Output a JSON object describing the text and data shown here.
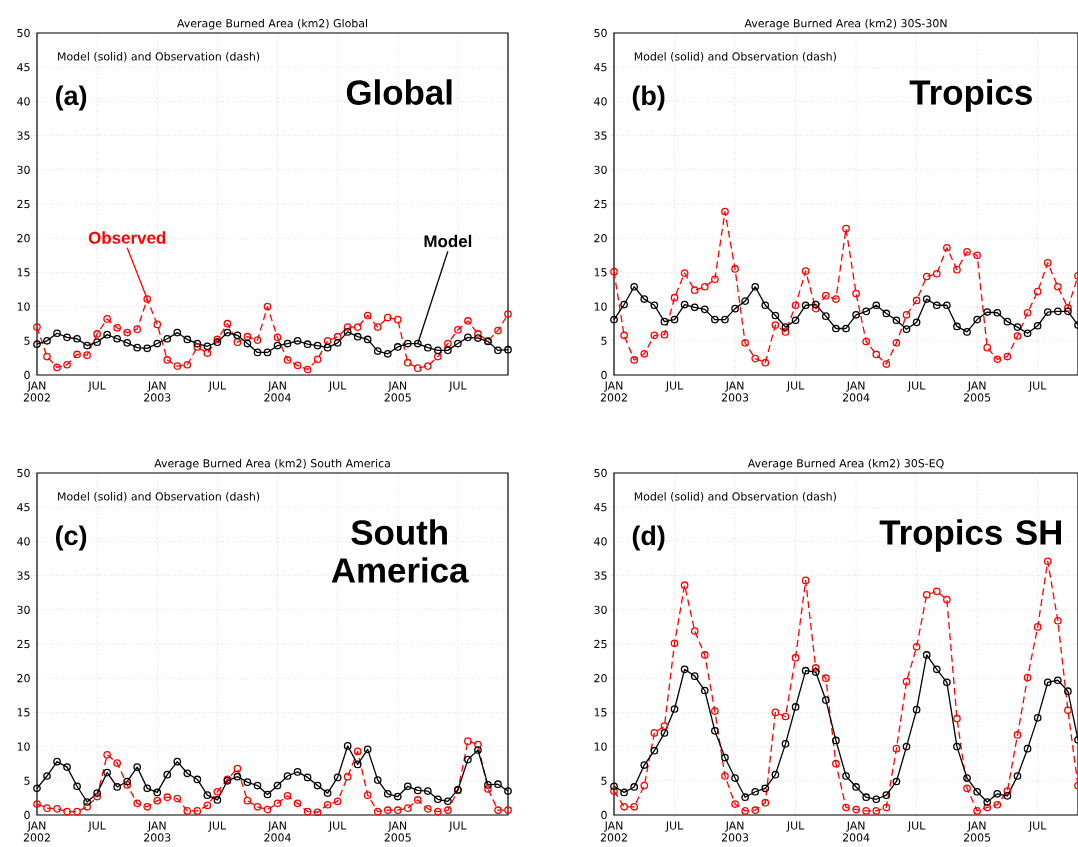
{
  "chart_data": [
    {
      "type": "line",
      "title": "Average Burned Area (km2) Global",
      "annotations": [
        "Model (solid) and Observation (dash)",
        "(a)",
        "Global",
        {
          "text": "Observed",
          "x": "2002-12",
          "y": 11.1
        },
        {
          "text": "Model",
          "x": "2005-03",
          "y": 4.6
        }
      ],
      "x": [
        "2002-01",
        "2002-02",
        "2002-03",
        "2002-04",
        "2002-05",
        "2002-06",
        "2002-07",
        "2002-08",
        "2002-09",
        "2002-10",
        "2002-11",
        "2002-12",
        "2003-01",
        "2003-02",
        "2003-03",
        "2003-04",
        "2003-05",
        "2003-06",
        "2003-07",
        "2003-08",
        "2003-09",
        "2003-10",
        "2003-11",
        "2003-12",
        "2004-01",
        "2004-02",
        "2004-03",
        "2004-04",
        "2004-05",
        "2004-06",
        "2004-07",
        "2004-08",
        "2004-09",
        "2004-10",
        "2004-11",
        "2004-12",
        "2005-01",
        "2005-02",
        "2005-03",
        "2005-04",
        "2005-05",
        "2005-06",
        "2005-07",
        "2005-08",
        "2005-09",
        "2005-10",
        "2005-11",
        "2005-12"
      ],
      "xlim": [
        "2002-01",
        "2005-12"
      ],
      "xticks": [
        {
          "value": "2002-01",
          "label": "JAN 2002"
        },
        {
          "value": "2002-07",
          "label": "JUL"
        },
        {
          "value": "2003-01",
          "label": "JAN 2003"
        },
        {
          "value": "2003-07",
          "label": "JUL"
        },
        {
          "value": "2004-01",
          "label": "JAN 2004"
        },
        {
          "value": "2004-07",
          "label": "JUL"
        },
        {
          "value": "2005-01",
          "label": "JAN 2005"
        },
        {
          "value": "2005-07",
          "label": "JUL"
        }
      ],
      "ylim": [
        0,
        50
      ],
      "yticks": [
        0,
        5,
        10,
        15,
        20,
        25,
        30,
        35,
        40,
        45,
        50
      ],
      "grid": true,
      "marker": "circle",
      "series": [
        {
          "color": "#ff0000",
          "line_style": "dashed",
          "values": [
            7.0,
            2.7,
            1.1,
            1.5,
            3.0,
            2.9,
            6.0,
            8.2,
            6.9,
            6.2,
            6.7,
            11.1,
            7.4,
            2.2,
            1.3,
            1.5,
            4.1,
            3.2,
            5.2,
            7.5,
            4.8,
            5.6,
            5.1,
            10.0,
            5.5,
            2.2,
            1.4,
            0.8,
            2.3,
            5.0,
            5.6,
            7.0,
            7.0,
            8.7,
            7.0,
            8.4,
            8.1,
            1.8,
            1.0,
            1.3,
            2.7,
            4.6,
            6.6,
            7.9,
            6.0,
            5.0,
            6.5,
            8.9
          ]
        },
        {
          "color": "#000000",
          "line_style": "solid",
          "values": [
            4.5,
            5.0,
            6.1,
            5.5,
            5.3,
            4.3,
            4.8,
            5.9,
            5.3,
            4.7,
            4.0,
            3.9,
            4.6,
            5.3,
            6.2,
            5.2,
            4.6,
            4.2,
            4.8,
            6.2,
            5.8,
            4.6,
            3.3,
            3.3,
            4.3,
            4.6,
            5.0,
            4.5,
            4.3,
            4.0,
            4.7,
            6.3,
            5.6,
            5.2,
            3.5,
            3.1,
            4.1,
            4.6,
            4.6,
            4.0,
            3.6,
            3.6,
            4.6,
            5.5,
            5.4,
            4.9,
            3.6,
            3.7
          ]
        }
      ]
    },
    {
      "type": "line",
      "title": "Average Burned Area (km2) 30S-30N",
      "annotations": [
        "Model (solid) and Observation (dash)",
        "(b)",
        "Tropics"
      ],
      "x": [
        "2002-01",
        "2002-02",
        "2002-03",
        "2002-04",
        "2002-05",
        "2002-06",
        "2002-07",
        "2002-08",
        "2002-09",
        "2002-10",
        "2002-11",
        "2002-12",
        "2003-01",
        "2003-02",
        "2003-03",
        "2003-04",
        "2003-05",
        "2003-06",
        "2003-07",
        "2003-08",
        "2003-09",
        "2003-10",
        "2003-11",
        "2003-12",
        "2004-01",
        "2004-02",
        "2004-03",
        "2004-04",
        "2004-05",
        "2004-06",
        "2004-07",
        "2004-08",
        "2004-09",
        "2004-10",
        "2004-11",
        "2004-12",
        "2005-01",
        "2005-02",
        "2005-03",
        "2005-04",
        "2005-05",
        "2005-06",
        "2005-07",
        "2005-08",
        "2005-09",
        "2005-10",
        "2005-11"
      ],
      "xlim": [
        "2002-01",
        "2005-11"
      ],
      "xticks": [
        {
          "value": "2002-01",
          "label": "JAN 2002"
        },
        {
          "value": "2002-07",
          "label": "JUL"
        },
        {
          "value": "2003-01",
          "label": "JAN 2003"
        },
        {
          "value": "2003-07",
          "label": "JUL"
        },
        {
          "value": "2004-01",
          "label": "JAN 2004"
        },
        {
          "value": "2004-07",
          "label": "JUL"
        },
        {
          "value": "2005-01",
          "label": "JAN 2005"
        },
        {
          "value": "2005-07",
          "label": "JUL"
        }
      ],
      "ylim": [
        0,
        50
      ],
      "yticks": [
        0,
        5,
        10,
        15,
        20,
        25,
        30,
        35,
        40,
        45,
        50
      ],
      "grid": true,
      "marker": "circle",
      "series": [
        {
          "color": "#ff0000",
          "line_style": "dashed",
          "values": [
            15.1,
            5.8,
            2.2,
            3.1,
            5.8,
            5.9,
            11.3,
            14.9,
            12.4,
            12.9,
            14.0,
            23.9,
            15.5,
            4.7,
            2.4,
            1.8,
            7.3,
            6.3,
            10.2,
            15.2,
            9.7,
            11.6,
            11.1,
            21.4,
            11.9,
            4.9,
            3.0,
            1.6,
            4.7,
            8.8,
            10.9,
            14.4,
            14.8,
            18.6,
            15.4,
            18.0,
            17.5,
            4.0,
            2.3,
            2.7,
            5.7,
            9.1,
            12.2,
            16.4,
            12.9,
            9.8,
            14.5
          ]
        },
        {
          "color": "#000000",
          "line_style": "solid",
          "values": [
            8.1,
            10.3,
            12.9,
            11.1,
            10.2,
            7.8,
            8.1,
            10.3,
            9.9,
            9.6,
            8.1,
            8.1,
            9.7,
            10.8,
            12.9,
            10.2,
            8.7,
            7.0,
            8.0,
            10.2,
            10.3,
            8.6,
            6.8,
            6.8,
            8.8,
            9.3,
            10.2,
            9.0,
            8.0,
            6.7,
            7.7,
            11.1,
            10.2,
            10.2,
            7.1,
            6.3,
            8.1,
            9.2,
            9.1,
            7.8,
            7.0,
            6.1,
            7.2,
            9.2,
            9.3,
            9.3,
            7.3
          ]
        }
      ]
    },
    {
      "type": "line",
      "title": "Average Burned Area (km2) South America",
      "annotations": [
        "Model (solid) and Observation (dash)",
        "(c)",
        "South America"
      ],
      "x": [
        "2002-01",
        "2002-02",
        "2002-03",
        "2002-04",
        "2002-05",
        "2002-06",
        "2002-07",
        "2002-08",
        "2002-09",
        "2002-10",
        "2002-11",
        "2002-12",
        "2003-01",
        "2003-02",
        "2003-03",
        "2003-04",
        "2003-05",
        "2003-06",
        "2003-07",
        "2003-08",
        "2003-09",
        "2003-10",
        "2003-11",
        "2003-12",
        "2004-01",
        "2004-02",
        "2004-03",
        "2004-04",
        "2004-05",
        "2004-06",
        "2004-07",
        "2004-08",
        "2004-09",
        "2004-10",
        "2004-11",
        "2004-12",
        "2005-01",
        "2005-02",
        "2005-03",
        "2005-04",
        "2005-05",
        "2005-06",
        "2005-07",
        "2005-08",
        "2005-09",
        "2005-10",
        "2005-11",
        "2005-12"
      ],
      "xlim": [
        "2002-01",
        "2005-12"
      ],
      "xticks": [
        {
          "value": "2002-01",
          "label": "JAN 2002"
        },
        {
          "value": "2002-07",
          "label": "JUL"
        },
        {
          "value": "2003-01",
          "label": "JAN 2003"
        },
        {
          "value": "2003-07",
          "label": "JUL"
        },
        {
          "value": "2004-01",
          "label": "JAN 2004"
        },
        {
          "value": "2004-07",
          "label": "JUL"
        },
        {
          "value": "2005-01",
          "label": "JAN 2005"
        },
        {
          "value": "2005-07",
          "label": "JUL"
        }
      ],
      "ylim": [
        0,
        50
      ],
      "yticks": [
        0,
        5,
        10,
        15,
        20,
        25,
        30,
        35,
        40,
        45,
        50
      ],
      "grid": true,
      "marker": "circle",
      "series": [
        {
          "color": "#ff0000",
          "line_style": "dashed",
          "values": [
            1.6,
            1.0,
            0.9,
            0.5,
            0.5,
            1.2,
            2.7,
            8.8,
            7.6,
            4.4,
            1.7,
            1.2,
            2.1,
            2.6,
            2.4,
            0.6,
            0.6,
            1.4,
            3.4,
            5.2,
            6.8,
            2.1,
            1.2,
            0.8,
            1.7,
            2.8,
            1.7,
            0.5,
            0.4,
            1.5,
            2.0,
            5.6,
            9.3,
            2.9,
            0.5,
            0.7,
            0.7,
            1.0,
            2.2,
            0.9,
            0.5,
            0.7,
            3.6,
            10.8,
            10.3,
            3.8,
            0.7,
            0.7
          ]
        },
        {
          "color": "#000000",
          "line_style": "solid",
          "values": [
            3.9,
            5.7,
            7.8,
            7.0,
            4.2,
            1.9,
            3.2,
            6.2,
            4.1,
            4.9,
            7.0,
            3.9,
            3.3,
            5.9,
            7.8,
            6.1,
            5.2,
            2.9,
            2.2,
            5.0,
            5.6,
            4.8,
            4.3,
            3.0,
            4.3,
            5.7,
            6.3,
            5.5,
            4.3,
            3.2,
            5.5,
            10.1,
            7.4,
            9.6,
            5.1,
            3.1,
            2.7,
            4.2,
            3.6,
            3.5,
            2.3,
            2.0,
            3.7,
            8.1,
            9.5,
            4.4,
            4.5,
            3.5
          ]
        }
      ]
    },
    {
      "type": "line",
      "title": "Average Burned Area (km2) 30S-EQ",
      "annotations": [
        "Model (solid) and Observation (dash)",
        "(d)",
        "Tropics SH"
      ],
      "x": [
        "2002-01",
        "2002-02",
        "2002-03",
        "2002-04",
        "2002-05",
        "2002-06",
        "2002-07",
        "2002-08",
        "2002-09",
        "2002-10",
        "2002-11",
        "2002-12",
        "2003-01",
        "2003-02",
        "2003-03",
        "2003-04",
        "2003-05",
        "2003-06",
        "2003-07",
        "2003-08",
        "2003-09",
        "2003-10",
        "2003-11",
        "2003-12",
        "2004-01",
        "2004-02",
        "2004-03",
        "2004-04",
        "2004-05",
        "2004-06",
        "2004-07",
        "2004-08",
        "2004-09",
        "2004-10",
        "2004-11",
        "2004-12",
        "2005-01",
        "2005-02",
        "2005-03",
        "2005-04",
        "2005-05",
        "2005-06",
        "2005-07",
        "2005-08",
        "2005-09",
        "2005-10",
        "2005-11"
      ],
      "xlim": [
        "2002-01",
        "2005-11"
      ],
      "xticks": [
        {
          "value": "2002-01",
          "label": "JAN 2002"
        },
        {
          "value": "2002-07",
          "label": "JUL"
        },
        {
          "value": "2003-01",
          "label": "JAN 2003"
        },
        {
          "value": "2003-07",
          "label": "JUL"
        },
        {
          "value": "2004-01",
          "label": "JAN 2004"
        },
        {
          "value": "2004-07",
          "label": "JUL"
        },
        {
          "value": "2005-01",
          "label": "JAN 2005"
        },
        {
          "value": "2005-07",
          "label": "JUL"
        }
      ],
      "ylim": [
        0,
        50
      ],
      "yticks": [
        0,
        5,
        10,
        15,
        20,
        25,
        30,
        35,
        40,
        45,
        50
      ],
      "grid": true,
      "marker": "circle",
      "series": [
        {
          "color": "#ff0000",
          "line_style": "dashed",
          "values": [
            3.5,
            1.2,
            1.2,
            4.3,
            12.0,
            13.0,
            25.1,
            33.6,
            26.9,
            23.4,
            15.2,
            5.7,
            1.6,
            0.6,
            0.7,
            1.8,
            15.0,
            14.4,
            23.0,
            34.3,
            21.5,
            20.0,
            7.5,
            1.1,
            0.8,
            0.6,
            0.6,
            1.1,
            9.7,
            19.5,
            24.6,
            32.2,
            32.7,
            31.5,
            14.1,
            3.9,
            0.6,
            1.1,
            1.5,
            3.5,
            11.7,
            20.1,
            27.5,
            37.1,
            28.4,
            15.3,
            4.3
          ]
        },
        {
          "color": "#000000",
          "line_style": "solid",
          "values": [
            4.2,
            3.3,
            4.1,
            7.3,
            9.4,
            12.0,
            15.5,
            21.3,
            20.3,
            18.2,
            12.3,
            8.4,
            5.4,
            2.6,
            3.4,
            3.9,
            5.9,
            10.4,
            15.8,
            21.1,
            20.9,
            16.8,
            10.9,
            5.7,
            4.1,
            2.6,
            2.3,
            2.9,
            4.9,
            10.0,
            15.4,
            23.4,
            21.3,
            19.4,
            10.0,
            5.4,
            3.4,
            1.9,
            3.1,
            2.8,
            5.7,
            9.7,
            14.2,
            19.4,
            19.7,
            18.1,
            11.0
          ]
        }
      ]
    }
  ]
}
